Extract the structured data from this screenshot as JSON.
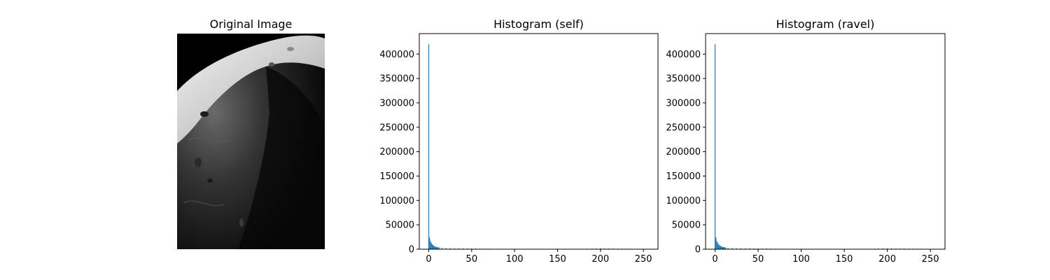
{
  "image_panel": {
    "title": "Original Image"
  },
  "colors": {
    "bar": "#1f77b4",
    "axes": "#000000",
    "background": "#ffffff"
  },
  "chart_data": [
    {
      "type": "bar",
      "title": "Histogram (self)",
      "xlabel": "",
      "ylabel": "",
      "xlim": [
        -11,
        267
      ],
      "ylim": [
        0,
        442000
      ],
      "xticks": [
        0,
        50,
        100,
        150,
        200,
        250
      ],
      "yticks": [
        0,
        50000,
        100000,
        150000,
        200000,
        250000,
        300000,
        350000,
        400000
      ],
      "grid": false,
      "x": [
        0,
        1,
        2,
        3,
        4,
        5,
        6,
        7,
        8,
        9,
        10,
        11,
        12,
        15,
        20,
        25,
        30,
        35,
        40,
        45,
        50,
        55,
        60,
        65,
        70,
        185,
        190,
        195,
        200,
        205,
        210,
        215,
        220,
        225,
        230,
        235,
        240,
        255
      ],
      "values": [
        420000,
        24000,
        17000,
        13000,
        10000,
        8500,
        7000,
        6000,
        5200,
        4600,
        4200,
        3800,
        3500,
        3000,
        2500,
        2200,
        2000,
        1800,
        1700,
        1600,
        1500,
        1400,
        1300,
        1200,
        1100,
        1000,
        1400,
        1600,
        1800,
        1700,
        1500,
        1400,
        1300,
        1200,
        1100,
        1000,
        900,
        400
      ]
    },
    {
      "type": "bar",
      "title": "Histogram (ravel)",
      "xlabel": "",
      "ylabel": "",
      "xlim": [
        -11,
        267
      ],
      "ylim": [
        0,
        442000
      ],
      "xticks": [
        0,
        50,
        100,
        150,
        200,
        250
      ],
      "yticks": [
        0,
        50000,
        100000,
        150000,
        200000,
        250000,
        300000,
        350000,
        400000
      ],
      "grid": false,
      "x": [
        0,
        1,
        2,
        3,
        4,
        5,
        6,
        7,
        8,
        9,
        10,
        11,
        12,
        15,
        20,
        25,
        30,
        35,
        40,
        45,
        50,
        55,
        60,
        65,
        70,
        185,
        190,
        195,
        200,
        205,
        210,
        215,
        220,
        225,
        230,
        235,
        240,
        255
      ],
      "values": [
        420000,
        24000,
        17000,
        13000,
        10000,
        8500,
        7000,
        6000,
        5200,
        4600,
        4200,
        3800,
        3500,
        3000,
        2500,
        2200,
        2000,
        1800,
        1700,
        1600,
        1500,
        1400,
        1300,
        1200,
        1100,
        1000,
        1400,
        1600,
        1800,
        1700,
        1500,
        1400,
        1300,
        1200,
        1100,
        1000,
        900,
        400
      ]
    }
  ]
}
